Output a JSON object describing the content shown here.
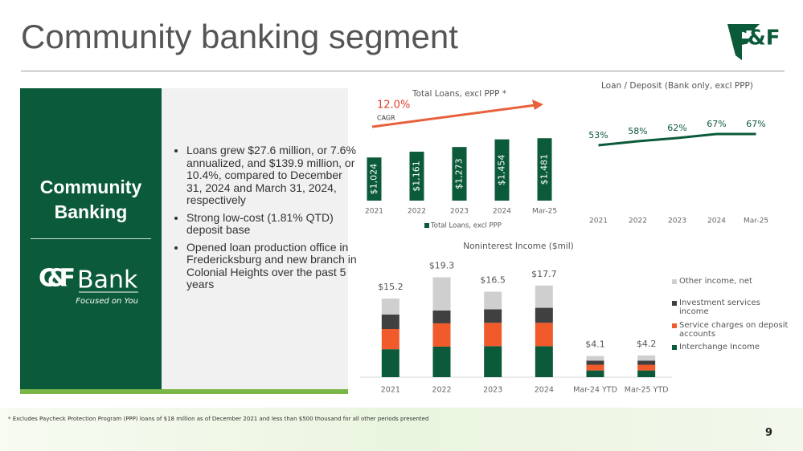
{
  "header": {
    "title": "Community banking segment",
    "logo": "C&F"
  },
  "sidebar": {
    "heading": "Community Banking",
    "logo_word": "Bank",
    "logo_tagline": "Focused on You",
    "logo_mark": "C&F"
  },
  "bullets": [
    "Loans grew $27.6 million, or 7.6% annualized, and $139.9 million, or 10.4%, compared to December 31, 2024 and March 31, 2024, respectively",
    "Strong low-cost (1.81% QTD) deposit base",
    "Opened loan production office in Fredericksburg and new branch in Colonial Heights over the past 5 years"
  ],
  "footnote": "* Excludes Paycheck Protection Program (PPP) loans of $18 million as of December 2021 and less than $500 thousand for all other periods presented",
  "page_number": "9",
  "chart_data": [
    {
      "type": "bar",
      "title": "Total Loans, excl PPP *",
      "categories": [
        "2021",
        "2022",
        "2023",
        "2024",
        "Mar-25"
      ],
      "series": [
        {
          "name": "Total Loans, excl PPP",
          "color": "#0b5a3a",
          "values": [
            1024,
            1161,
            1273,
            1454,
            1481
          ],
          "value_labels": [
            "$1,024",
            "$1,161",
            "$1,273",
            "$1,454",
            "$1,481"
          ]
        }
      ],
      "ylim": [
        0,
        1600
      ],
      "annotations": [
        "12.0%",
        "CAGR"
      ]
    },
    {
      "type": "line",
      "title": "Loan / Deposit (Bank only, excl PPP)",
      "categories": [
        "2021",
        "2022",
        "2023",
        "2024",
        "Mar-25"
      ],
      "series": [
        {
          "name": "Loan / Deposit",
          "color": "#0b5a3a",
          "values": [
            53,
            58,
            62,
            67,
            67
          ],
          "value_labels": [
            "53%",
            "58%",
            "62%",
            "67%",
            "67%"
          ]
        }
      ],
      "ylim": [
        0,
        100
      ]
    },
    {
      "type": "stacked_bar",
      "title": "Noninterest Income ($mil)",
      "categories": [
        "2021",
        "2022",
        "2023",
        "2024",
        "Mar-24 YTD",
        "Mar-25 YTD"
      ],
      "series": [
        {
          "name": "Interchange Income",
          "color": "#0b5a3a",
          "values": [
            5.4,
            5.9,
            6.0,
            6.0,
            1.3,
            1.3
          ]
        },
        {
          "name": "Service charges on deposit accounts",
          "color": "#f15a2b",
          "values": [
            3.9,
            4.5,
            4.5,
            4.5,
            1.1,
            1.1
          ]
        },
        {
          "name": "Investment services income",
          "color": "#404040",
          "values": [
            2.8,
            2.5,
            2.6,
            2.9,
            0.8,
            0.8
          ]
        },
        {
          "name": "Other income, net",
          "color": "#cfcfcf",
          "values": [
            3.1,
            6.4,
            3.4,
            4.3,
            0.9,
            1.0
          ]
        }
      ],
      "totals": [
        15.2,
        19.3,
        16.5,
        17.7,
        4.1,
        4.2
      ],
      "total_labels": [
        "$15.2",
        "$19.3",
        "$16.5",
        "$17.7",
        "$4.1",
        "$4.2"
      ],
      "ylim": [
        0,
        20
      ]
    }
  ]
}
